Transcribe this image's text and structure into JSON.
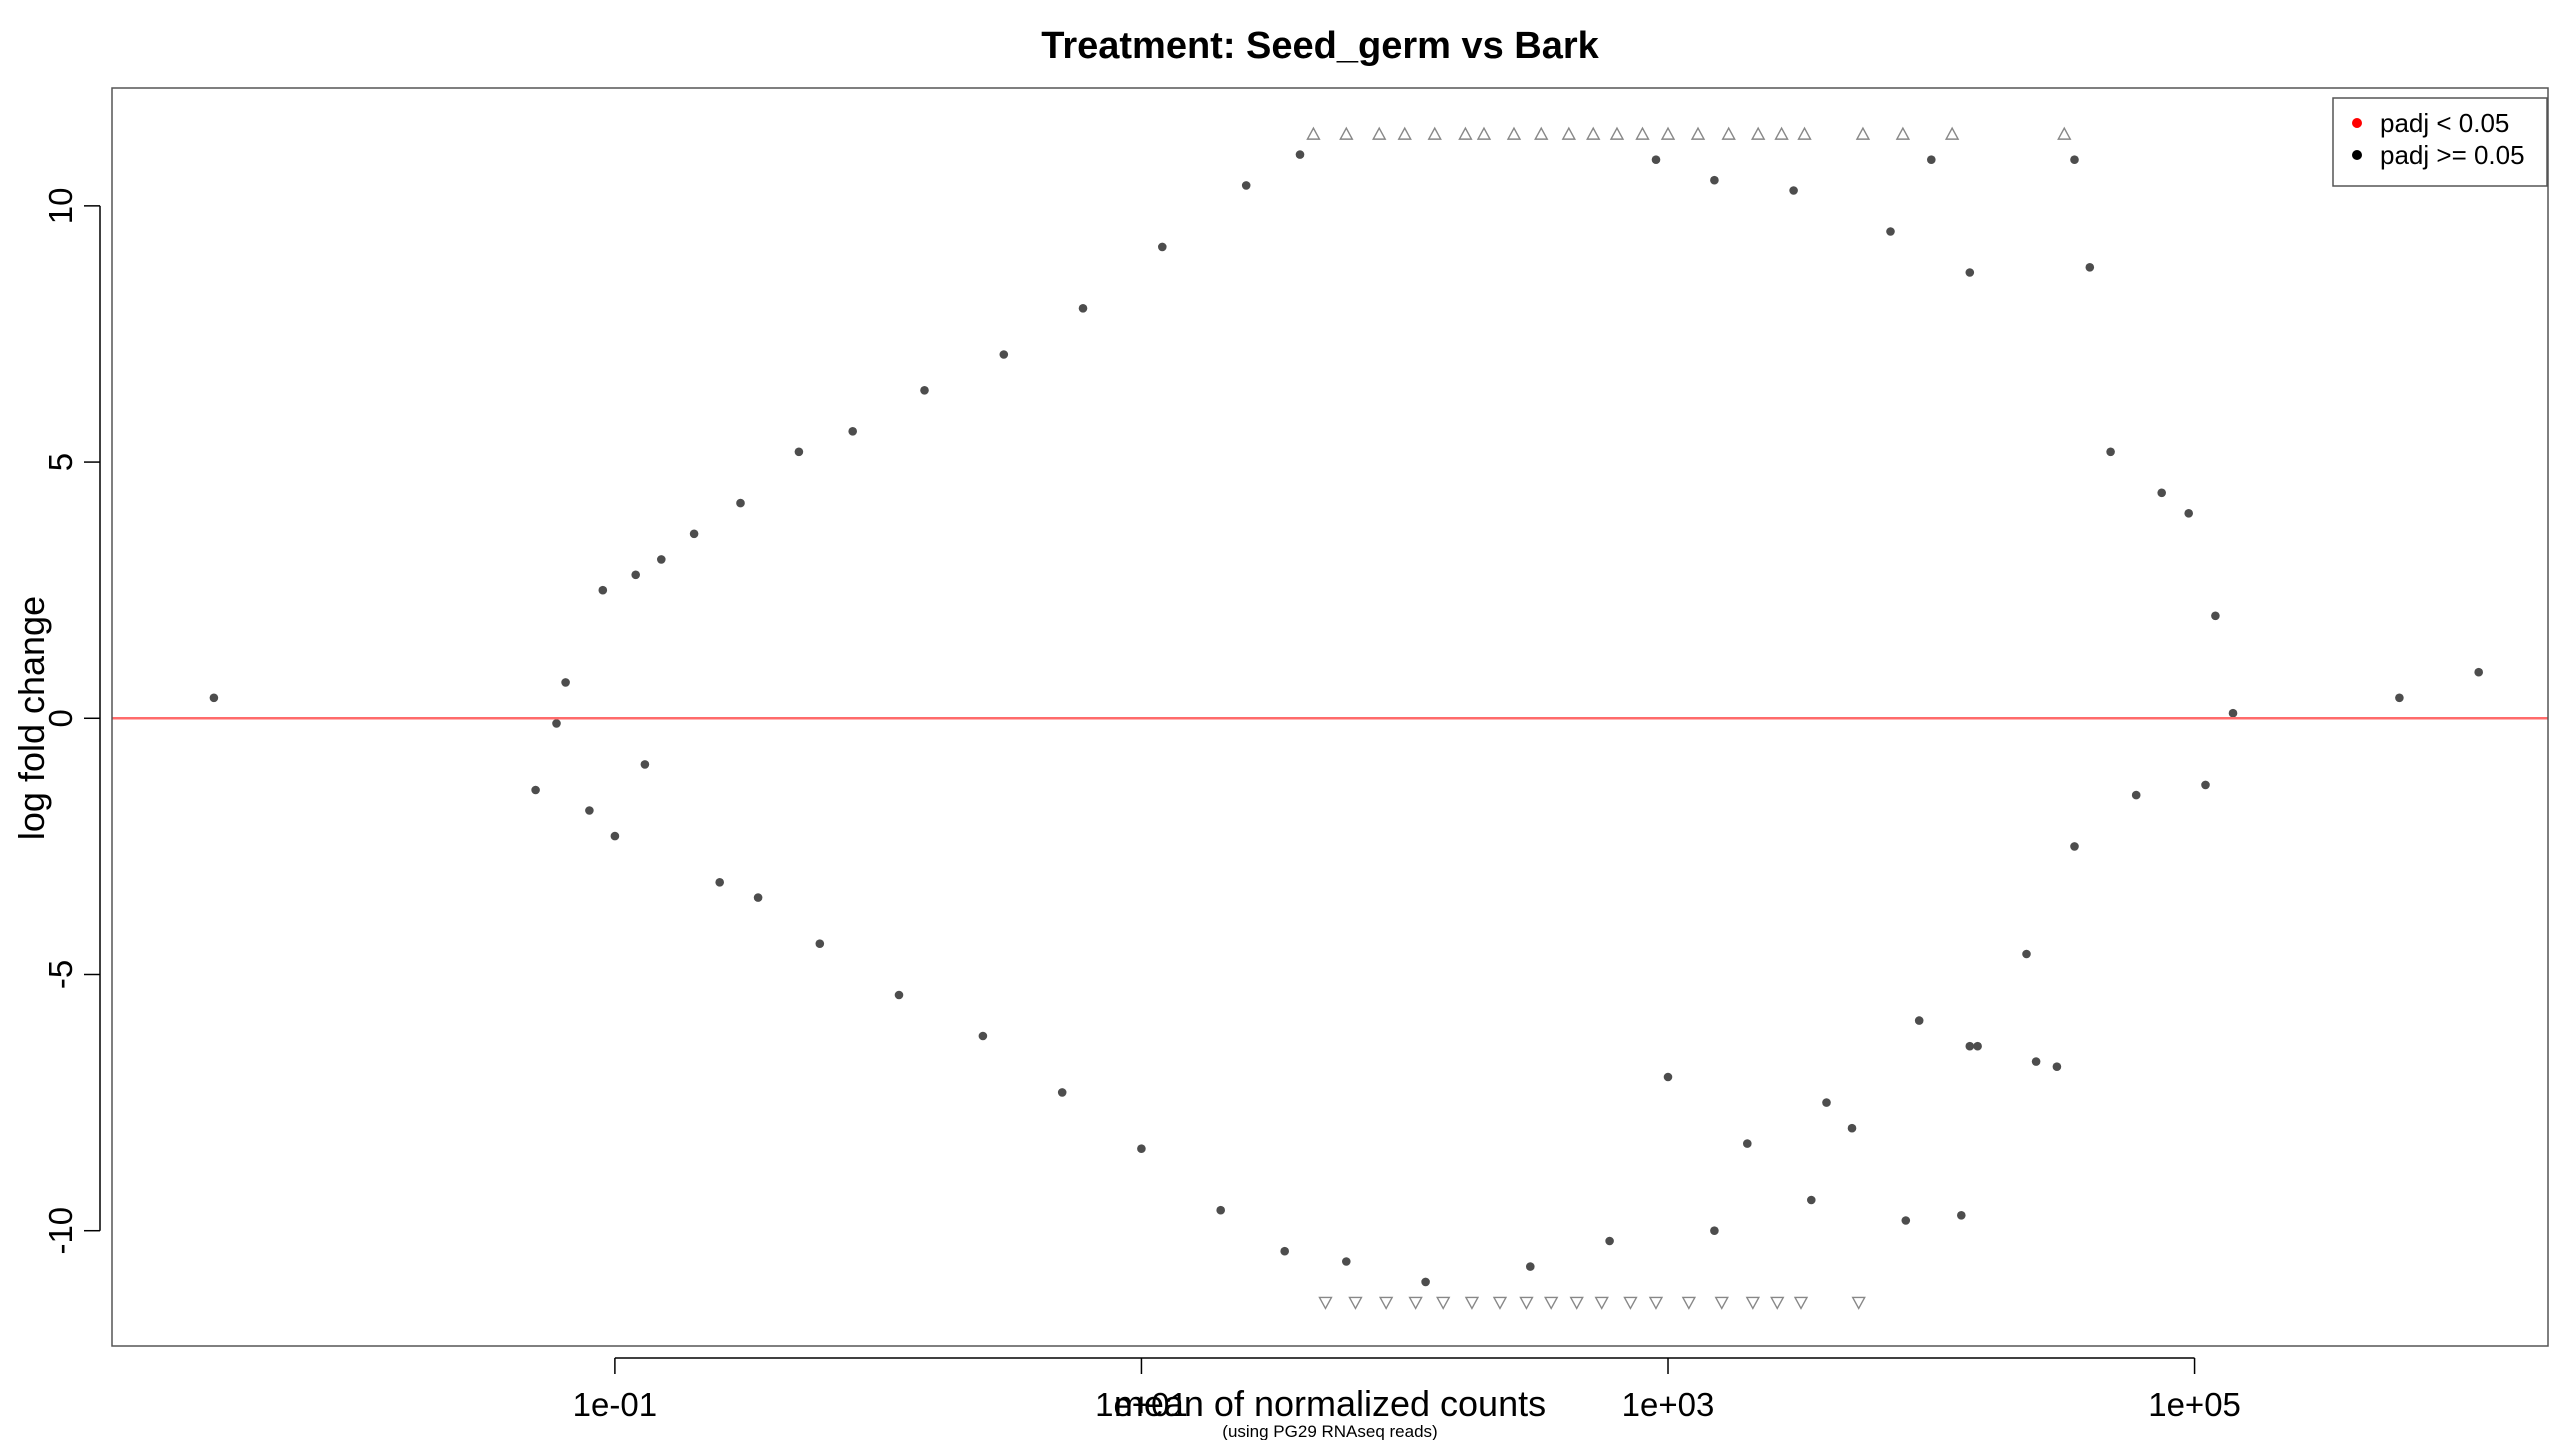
{
  "chart_data": {
    "type": "scatter",
    "title": "Treatment: Seed_germ vs Bark",
    "xlabel": "mean of normalized counts",
    "subtitle": "(using PG29 RNAseq reads)",
    "ylabel": "log fold change",
    "x_scale": "log10",
    "xlim": [
      0.00123,
      2200000
    ],
    "ylim": [
      -12.25,
      12.3
    ],
    "x_ticks": [
      {
        "value": 0.1,
        "label": "1e-01"
      },
      {
        "value": 10,
        "label": "1e+01"
      },
      {
        "value": 1000,
        "label": "1e+03"
      },
      {
        "value": 100000,
        "label": "1e+05"
      }
    ],
    "y_ticks": [
      {
        "value": -10,
        "label": "-10"
      },
      {
        "value": -5,
        "label": "-5"
      },
      {
        "value": 0,
        "label": "0"
      },
      {
        "value": 5,
        "label": "5"
      },
      {
        "value": 10,
        "label": "10"
      }
    ],
    "reference_line": {
      "y": 0,
      "color": "#ff6b6b"
    },
    "point_color": "#4d4d4d",
    "clip_marker_color": "#888888",
    "y_clip": {
      "upper": 11.4,
      "lower": -11.4
    },
    "legend": {
      "position": "top-right",
      "entries": [
        {
          "label": "padj < 0.05",
          "color": "#ff0000"
        },
        {
          "label": "padj >= 0.05",
          "color": "#000000"
        }
      ]
    },
    "series": [
      {
        "name": "padj >= 0.05",
        "points": [
          [
            0.003,
            0.4
          ],
          [
            0.05,
            -1.4
          ],
          [
            0.06,
            -0.1
          ],
          [
            0.065,
            0.7
          ],
          [
            0.08,
            -1.8
          ],
          [
            0.1,
            -2.3
          ],
          [
            0.09,
            2.5
          ],
          [
            0.12,
            2.8
          ],
          [
            0.15,
            3.1
          ],
          [
            0.13,
            -0.9
          ],
          [
            0.2,
            3.6
          ],
          [
            0.3,
            4.2
          ],
          [
            0.5,
            5.2
          ],
          [
            0.8,
            5.6
          ],
          [
            1.5,
            6.4
          ],
          [
            3,
            7.1
          ],
          [
            6,
            8.0
          ],
          [
            12,
            9.2
          ],
          [
            25,
            10.4
          ],
          [
            40,
            11.0
          ],
          [
            0.25,
            -3.2
          ],
          [
            0.35,
            -3.5
          ],
          [
            0.6,
            -4.4
          ],
          [
            1.2,
            -5.4
          ],
          [
            2.5,
            -6.2
          ],
          [
            5,
            -7.3
          ],
          [
            10,
            -8.4
          ],
          [
            20,
            -9.6
          ],
          [
            35,
            -10.4
          ],
          [
            60,
            -10.6
          ],
          [
            120,
            -11.0
          ],
          [
            300,
            -10.7
          ],
          [
            600,
            -10.2
          ],
          [
            1500,
            -10.0
          ],
          [
            3500,
            -9.4
          ],
          [
            8000,
            -9.8
          ],
          [
            13000,
            -9.7
          ],
          [
            5000,
            -8.0
          ],
          [
            15000,
            -6.4
          ],
          [
            23000,
            -4.6
          ],
          [
            35000,
            -2.5
          ],
          [
            60000,
            -1.5
          ],
          [
            110000,
            -1.3
          ],
          [
            140000,
            0.1
          ],
          [
            120000,
            2.0
          ],
          [
            95000,
            4.0
          ],
          [
            75000,
            4.4
          ],
          [
            48000,
            5.2
          ],
          [
            40000,
            8.8
          ],
          [
            35000,
            10.9
          ],
          [
            10000,
            10.9
          ],
          [
            14000,
            8.7
          ],
          [
            7000,
            9.5
          ],
          [
            3000,
            10.3
          ],
          [
            1500,
            10.5
          ],
          [
            900,
            10.9
          ],
          [
            600000,
            0.4
          ],
          [
            1200000,
            0.9
          ],
          [
            30000,
            -6.8
          ],
          [
            25000,
            -6.7
          ],
          [
            9000,
            -5.9
          ],
          [
            14000,
            -6.4
          ],
          [
            1000,
            -7.0
          ],
          [
            2000,
            -8.3
          ],
          [
            4000,
            -7.5
          ]
        ]
      }
    ],
    "clipped_points": {
      "up_x": [
        45,
        60,
        80,
        100,
        130,
        170,
        200,
        260,
        330,
        420,
        520,
        640,
        800,
        1000,
        1300,
        1700,
        2200,
        2700,
        3300,
        5500,
        7800,
        12000,
        32000
      ],
      "down_x": [
        50,
        65,
        85,
        110,
        140,
        180,
        230,
        290,
        360,
        450,
        560,
        720,
        900,
        1200,
        1600,
        2100,
        2600,
        3200,
        5300
      ]
    }
  }
}
